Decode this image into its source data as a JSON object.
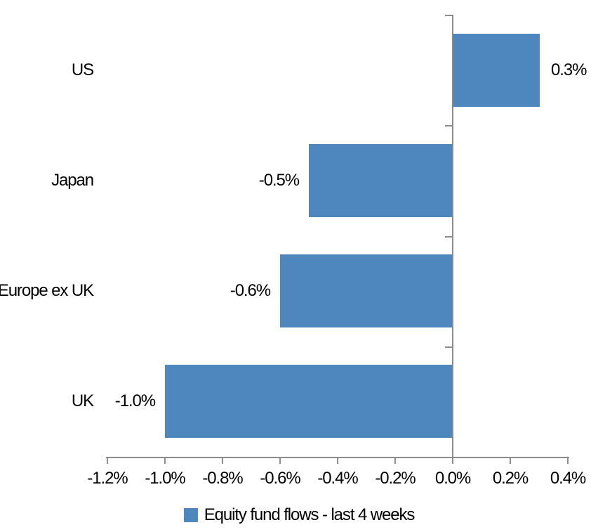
{
  "chart_data": {
    "type": "bar",
    "orientation": "horizontal",
    "categories": [
      "US",
      "Japan",
      "Europe ex UK",
      "UK"
    ],
    "series": [
      {
        "name": "Equity fund flows - last 4 weeks",
        "values": [
          0.3,
          -0.5,
          -0.6,
          -1.0
        ],
        "labels": [
          "0.3%",
          "-0.5%",
          "-0.6%",
          "-1.0%"
        ],
        "color": "#4E87BE"
      }
    ],
    "x_axis": {
      "min": -1.2,
      "max": 0.4,
      "step": 0.2,
      "tick_labels": [
        "-1.2%",
        "-1.0%",
        "-0.8%",
        "-0.6%",
        "-0.4%",
        "-0.2%",
        "0.0%",
        "0.2%",
        "0.4%"
      ]
    },
    "legend": {
      "position": "bottom",
      "items": [
        {
          "label": "Equity fund flows - last 4 weeks",
          "color": "#4E87BE"
        }
      ]
    },
    "grid": false,
    "data_label_position": "outside-end",
    "axis_color": "#8C8C8C",
    "text_color": "#000000",
    "background": "#FFFFFF"
  }
}
